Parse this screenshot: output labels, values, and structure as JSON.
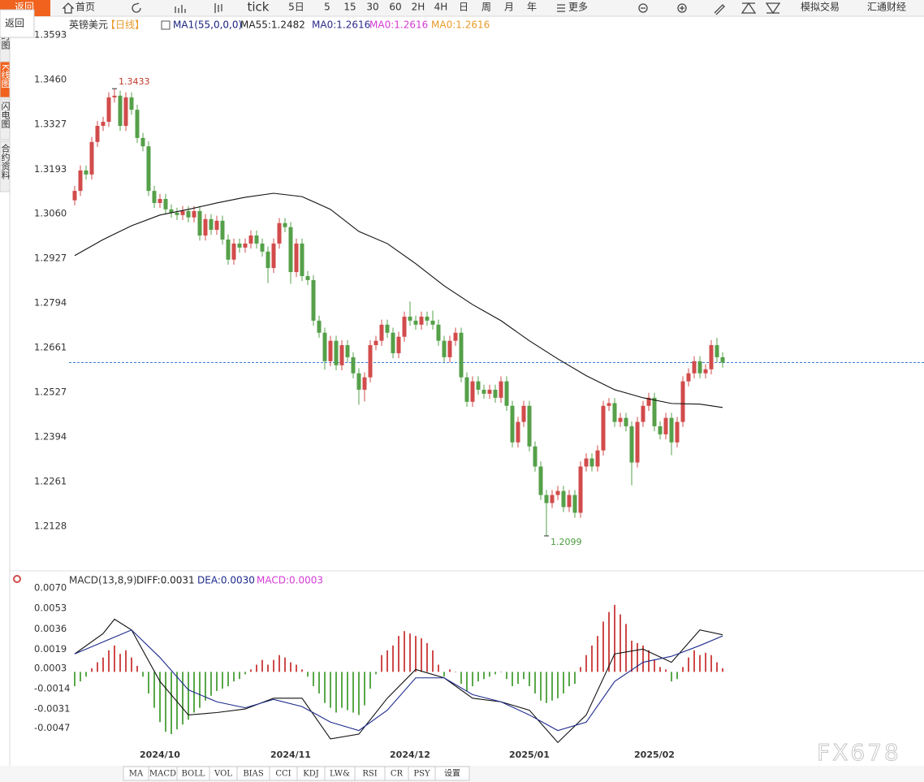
{
  "toolbar": [
    "返回",
    "首页",
    "tick",
    "5日",
    "5",
    "15",
    "30",
    "60",
    "2H",
    "4H",
    "日",
    "周",
    "月",
    "年",
    "更多",
    "模拟交易",
    "汇通财经"
  ],
  "side_tabs": [
    "时图",
    "K线图",
    "闪电图",
    "合约资料"
  ],
  "popup": "返回",
  "indicator_tabs": [
    "MA",
    "MACD",
    "BOLL",
    "VOL",
    "BIAS",
    "CCI",
    "KDJ",
    "LW&",
    "RSI",
    "CR",
    "PSY",
    "设置"
  ],
  "watermark": "FX678",
  "chart_data": [
    {
      "type": "candlestick",
      "title": "英镑美元",
      "subtitle": "【日线】",
      "legend": [
        "MA1(55,0,0,0)",
        "MA55:1.2482",
        "MA0:1.2616",
        "MA0:1.2616",
        "MA0:1.2616"
      ],
      "legend_colors": [
        "#1a237e",
        "#222222",
        "#2a2a8a",
        "#d63ad6",
        "#e89a2a"
      ],
      "up_color": "#d24b4b",
      "down_color": "#55a049",
      "open": [
        1.31,
        1.3128,
        1.3189,
        1.3177,
        1.3274,
        1.3322,
        1.3334,
        1.3407,
        1.3412,
        1.3322,
        1.3407,
        1.337,
        1.3286,
        1.3261,
        1.3128,
        1.3092,
        1.3104,
        1.3073,
        1.3063,
        1.3056,
        1.3068,
        1.3049,
        1.3068,
        1.2995,
        1.3044,
        1.3012,
        1.3039,
        1.2983,
        1.2923,
        1.2971,
        1.2959,
        1.2971,
        1.2995,
        1.2971,
        1.2947,
        1.2898,
        1.2971,
        1.3032,
        1.302,
        1.2886,
        1.2971,
        1.2874,
        1.2862,
        1.2741,
        1.2705,
        1.262,
        1.2681,
        1.2608,
        1.2668,
        1.2632,
        1.2584,
        1.2535,
        1.2572,
        1.2668,
        1.2681,
        1.2729,
        1.2705,
        1.2644,
        1.2693,
        1.2753,
        1.2741,
        1.2729,
        1.2753,
        1.2741,
        1.2729,
        1.2681,
        1.2632,
        1.2681,
        1.2705,
        1.2572,
        1.2499,
        1.256,
        1.2535,
        1.2523,
        1.2535,
        1.2511,
        1.256,
        1.2487,
        1.2378,
        1.2439,
        1.2487,
        1.2366,
        1.2306,
        1.2221,
        1.2197,
        1.2221,
        1.2233,
        1.2185,
        1.2221,
        1.2168,
        1.2306,
        1.233,
        1.2306,
        1.2354,
        1.2487,
        1.2495,
        1.2439,
        1.2451,
        1.2426,
        1.2318,
        1.2439,
        1.2487,
        1.2511,
        1.2426,
        1.2402,
        1.2451,
        1.2378,
        1.2439,
        1.256,
        1.2584,
        1.262,
        1.2584,
        1.2596,
        1.2668,
        1.2632
      ],
      "high": [
        1.3143,
        1.3204,
        1.3204,
        1.3289,
        1.3337,
        1.3349,
        1.3422,
        1.3433,
        1.3427,
        1.3422,
        1.3422,
        1.3385,
        1.3301,
        1.3276,
        1.3143,
        1.3119,
        1.3119,
        1.3088,
        1.3078,
        1.3083,
        1.3083,
        1.3083,
        1.3083,
        1.3059,
        1.3059,
        1.3054,
        1.3054,
        1.2998,
        1.2986,
        1.2986,
        1.2986,
        1.301,
        1.301,
        1.2986,
        1.2962,
        1.2986,
        1.3047,
        1.3047,
        1.3035,
        1.2986,
        1.2986,
        1.2889,
        1.2877,
        1.2756,
        1.272,
        1.2696,
        1.2696,
        1.2683,
        1.2683,
        1.2647,
        1.2599,
        1.2587,
        1.2683,
        1.2696,
        1.2744,
        1.2744,
        1.272,
        1.2708,
        1.2768,
        1.2798,
        1.2756,
        1.2768,
        1.2768,
        1.2771,
        1.2744,
        1.2696,
        1.2696,
        1.272,
        1.272,
        1.2587,
        1.2575,
        1.2575,
        1.255,
        1.255,
        1.255,
        1.2575,
        1.2575,
        1.2502,
        1.2454,
        1.2502,
        1.2502,
        1.2381,
        1.2321,
        1.2236,
        1.2236,
        1.2248,
        1.2248,
        1.2236,
        1.2236,
        1.2321,
        1.2345,
        1.2345,
        1.2369,
        1.2502,
        1.251,
        1.251,
        1.2466,
        1.2466,
        1.2441,
        1.2454,
        1.2502,
        1.2526,
        1.2526,
        1.2441,
        1.2466,
        1.2466,
        1.2454,
        1.2575,
        1.2599,
        1.2635,
        1.2635,
        1.2611,
        1.2683,
        1.269,
        1.2647
      ],
      "low": [
        1.3085,
        1.3113,
        1.3162,
        1.3162,
        1.3259,
        1.3307,
        1.3319,
        1.3392,
        1.3307,
        1.3307,
        1.3355,
        1.3271,
        1.3246,
        1.3113,
        1.3077,
        1.3077,
        1.3058,
        1.3048,
        1.3041,
        1.3041,
        1.3034,
        1.3034,
        1.298,
        1.298,
        1.2997,
        1.2997,
        1.2968,
        1.2908,
        1.2908,
        1.2944,
        1.2944,
        1.2956,
        1.2956,
        1.2932,
        1.2853,
        1.2883,
        1.2956,
        1.3005,
        1.2851,
        1.2871,
        1.2859,
        1.2847,
        1.2726,
        1.269,
        1.2595,
        1.2605,
        1.2593,
        1.2593,
        1.2617,
        1.2569,
        1.249,
        1.25,
        1.2557,
        1.2653,
        1.2666,
        1.269,
        1.2629,
        1.2629,
        1.2678,
        1.2726,
        1.2714,
        1.2714,
        1.2726,
        1.2714,
        1.2666,
        1.2617,
        1.2617,
        1.2666,
        1.2557,
        1.2484,
        1.2484,
        1.252,
        1.2508,
        1.2508,
        1.2496,
        1.2496,
        1.2472,
        1.2363,
        1.2363,
        1.2424,
        1.2351,
        1.2291,
        1.2206,
        1.2099,
        1.2182,
        1.2206,
        1.217,
        1.217,
        1.2153,
        1.2153,
        1.2291,
        1.2291,
        1.2291,
        1.2339,
        1.2472,
        1.2424,
        1.2424,
        1.2411,
        1.225,
        1.2303,
        1.2424,
        1.2472,
        1.2411,
        1.2387,
        1.2387,
        1.234,
        1.2363,
        1.2424,
        1.2545,
        1.2569,
        1.2569,
        1.2569,
        1.2581,
        1.2617,
        1.2601
      ],
      "close": [
        1.3128,
        1.3189,
        1.3177,
        1.3274,
        1.3322,
        1.3334,
        1.3407,
        1.3412,
        1.3322,
        1.3407,
        1.337,
        1.3286,
        1.3261,
        1.3128,
        1.3092,
        1.3104,
        1.3073,
        1.3063,
        1.3056,
        1.3068,
        1.3049,
        1.3068,
        1.2995,
        1.3044,
        1.3012,
        1.3039,
        1.2983,
        1.2923,
        1.2971,
        1.2959,
        1.2971,
        1.2995,
        1.2971,
        1.2947,
        1.2898,
        1.2971,
        1.3032,
        1.302,
        1.2886,
        1.2971,
        1.2874,
        1.2862,
        1.2741,
        1.2705,
        1.262,
        1.2681,
        1.2608,
        1.2668,
        1.2632,
        1.2584,
        1.2535,
        1.2572,
        1.2668,
        1.2681,
        1.2729,
        1.2705,
        1.2644,
        1.2693,
        1.2753,
        1.2741,
        1.2729,
        1.2753,
        1.2741,
        1.2729,
        1.2681,
        1.2632,
        1.2681,
        1.2705,
        1.2572,
        1.2499,
        1.256,
        1.2535,
        1.2523,
        1.2535,
        1.2511,
        1.256,
        1.2487,
        1.2378,
        1.2439,
        1.2487,
        1.2366,
        1.2306,
        1.2221,
        1.2197,
        1.2221,
        1.2233,
        1.2185,
        1.2221,
        1.2168,
        1.2306,
        1.233,
        1.2306,
        1.2354,
        1.2487,
        1.2495,
        1.2439,
        1.2451,
        1.2426,
        1.2318,
        1.2439,
        1.2487,
        1.2511,
        1.2426,
        1.2402,
        1.2451,
        1.2378,
        1.2439,
        1.256,
        1.2584,
        1.262,
        1.2584,
        1.2596,
        1.2668,
        1.2632,
        1.2616
      ],
      "series": [
        {
          "color": "#111111",
          "x": [
            0,
            5,
            10,
            15,
            20,
            25,
            30,
            35,
            40,
            45,
            50,
            55,
            60,
            65,
            70,
            75,
            80,
            85,
            90,
            95,
            100,
            105,
            110,
            114
          ],
          "values": [
            1.2935,
            1.2983,
            1.3024,
            1.3056,
            1.3073,
            1.3092,
            1.3109,
            1.3121,
            1.3111,
            1.3073,
            1.3007,
            1.2971,
            1.2911,
            1.2845,
            1.2789,
            1.2741,
            1.2681,
            1.2627,
            1.2577,
            1.2535,
            1.2511,
            1.2494,
            1.2492,
            1.2482
          ]
        }
      ],
      "last_line_color": "#3a7bd5",
      "ylim": [
        1.2002,
        1.3649
      ],
      "yticks": [
        1.3593,
        {
          "value": 1.346,
          "label": "1.3460"
        },
        1.3327,
        1.3193,
        {
          "value": 1.306,
          "label": "1.3060"
        },
        1.2927,
        1.2794,
        1.2661,
        1.2527,
        1.2394,
        1.2261,
        1.2128
      ]
    },
    {
      "type": "macd",
      "title": "MACD(13,8,9)",
      "legend": [
        "DIFF:0.0031",
        "DEA:0.0030",
        "MACD:0.0003"
      ],
      "legend_colors": [
        "#222222",
        "#1c2a8c",
        "#d63ad6"
      ],
      "series": [
        {
          "color": "#111111",
          "x": [
            0,
            5,
            7,
            10,
            15,
            20,
            25,
            30,
            35,
            40,
            45,
            50,
            55,
            60,
            65,
            70,
            75,
            80,
            85,
            90,
            95,
            100,
            105,
            110,
            114
          ],
          "values": [
            0.0015,
            0.0032,
            0.0044,
            0.0035,
            -0.0008,
            -0.0036,
            -0.0034,
            -0.0031,
            -0.0022,
            -0.0022,
            -0.0056,
            -0.0052,
            -0.0022,
            0.0002,
            -0.0005,
            -0.0022,
            -0.0025,
            -0.0032,
            -0.0059,
            -0.0036,
            0.0015,
            0.0019,
            0.0008,
            0.0035,
            0.0031
          ]
        },
        {
          "color": "#1c2a8c",
          "x": [
            0,
            5,
            10,
            15,
            20,
            25,
            30,
            35,
            40,
            45,
            50,
            55,
            60,
            65,
            70,
            75,
            80,
            85,
            90,
            95,
            100,
            105,
            110,
            114
          ],
          "values": [
            0.0015,
            0.0025,
            0.0035,
            0.0012,
            -0.0015,
            -0.0025,
            -0.003,
            -0.0023,
            -0.0029,
            -0.0042,
            -0.0049,
            -0.0032,
            -0.0005,
            -0.0005,
            -0.0019,
            -0.0025,
            -0.0036,
            -0.0049,
            -0.0042,
            -0.0008,
            0.0008,
            0.0013,
            0.0022,
            0.003
          ]
        }
      ],
      "histogram": {
        "up_color": "#cf4a4a",
        "down_color": "#5aa84a",
        "values": [
          -0.0012,
          -0.0008,
          -0.0004,
          0.0003,
          0.0008,
          0.0012,
          0.0018,
          0.0022,
          0.0015,
          0.0018,
          0.0012,
          0.0005,
          -0.0004,
          -0.0018,
          -0.003,
          -0.0042,
          -0.005,
          -0.0052,
          -0.0048,
          -0.0044,
          -0.004,
          -0.0034,
          -0.003,
          -0.0024,
          -0.002,
          -0.0016,
          -0.0014,
          -0.0012,
          -0.0008,
          -0.0006,
          -0.0002,
          0.0002,
          0.0006,
          0.001,
          0.0006,
          0.001,
          0.0014,
          0.0012,
          0.0008,
          0.0006,
          0.0002,
          -0.0004,
          -0.0012,
          -0.0018,
          -0.0026,
          -0.003,
          -0.0034,
          -0.003,
          -0.0032,
          -0.0034,
          -0.0036,
          -0.0028,
          -0.0014,
          -0.0002,
          0.0014,
          0.0018,
          0.0022,
          0.003,
          0.0034,
          0.0032,
          0.003,
          0.0028,
          0.0024,
          0.0018,
          0.0006,
          -0.0004,
          0.0002,
          0,
          -0.001,
          -0.0016,
          -0.0012,
          -0.0008,
          -0.0006,
          -0.0004,
          -0.0002,
          0,
          -0.0006,
          -0.0012,
          -0.001,
          -0.0006,
          -0.0012,
          -0.0018,
          -0.0024,
          -0.0026,
          -0.0024,
          -0.0022,
          -0.0018,
          -0.0012,
          -0.001,
          0.0004,
          0.0014,
          0.0022,
          0.003,
          0.0042,
          0.005,
          0.0056,
          0.0048,
          0.004,
          0.0026,
          0.0024,
          0.0022,
          0.0018,
          0.001,
          0.0004,
          0.0002,
          -0.0008,
          -0.0006,
          0.0004,
          0.0012,
          0.0018,
          0.0014,
          0.0016,
          0.0014,
          0.0008,
          0.0003
        ]
      },
      "ylim": [
        -0.0073,
        0.0083
      ],
      "yticks": [
        {
          "value": 0.007,
          "label": "0.0070"
        },
        0.0053,
        0.0036,
        0.0019,
        0.0003,
        -0.0014,
        -0.0031,
        -0.0047
      ],
      "xticks": [
        {
          "value": 15,
          "label": "2024/10"
        },
        {
          "value": 38,
          "label": "2024/11"
        },
        {
          "value": 59,
          "label": "2024/12"
        },
        {
          "value": 80,
          "label": "2025/01"
        },
        {
          "value": 102,
          "label": "2025/02"
        }
      ]
    }
  ]
}
